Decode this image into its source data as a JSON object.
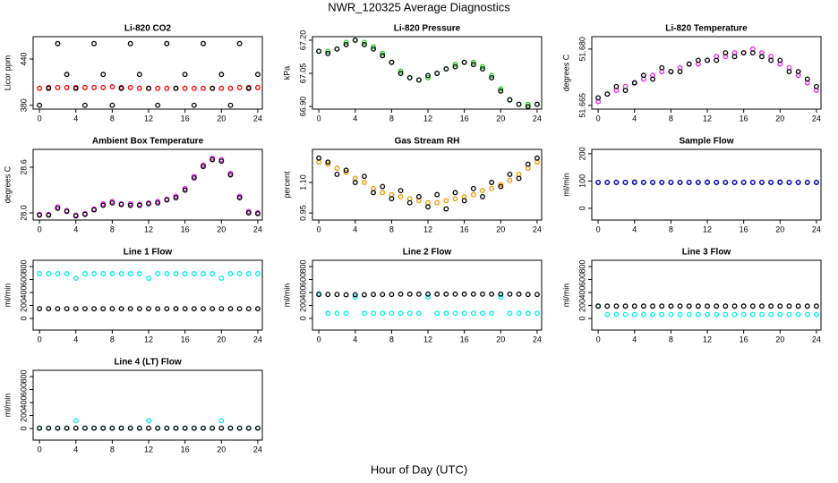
{
  "title": "NWR_120325  Average Diagnostics",
  "xlabel": "Hour of Day (UTC)",
  "chart_data": [
    {
      "type": "scatter",
      "title": "Li-820 CO2",
      "ylabel": "Licor ppm",
      "xlim": [
        -0.7,
        24.5
      ],
      "xticks": [
        0,
        4,
        8,
        12,
        16,
        20,
        24
      ],
      "ylim": [
        375,
        469
      ],
      "yticks": [
        380,
        440
      ],
      "x": [
        0,
        1,
        2,
        3,
        4,
        5,
        6,
        7,
        8,
        9,
        10,
        11,
        12,
        13,
        14,
        15,
        16,
        17,
        18,
        19,
        20,
        21,
        22,
        23,
        24
      ],
      "series": [
        {
          "color": "#ff0000",
          "values": [
            402,
            403,
            403,
            403,
            403,
            403,
            403,
            403,
            404,
            403,
            403,
            402,
            402,
            402,
            402,
            402,
            402,
            402,
            402,
            402,
            402,
            402,
            403,
            403,
            403
          ]
        },
        {
          "color": "#000000",
          "values": [
            380,
            402,
            460,
            420,
            402,
            380,
            460,
            420,
            380,
            402,
            460,
            420,
            402,
            380,
            460,
            402,
            420,
            380,
            460,
            402,
            420,
            380,
            460,
            402,
            420
          ]
        }
      ]
    },
    {
      "type": "scatter",
      "title": "Li-820 Pressure",
      "ylabel": "kPa",
      "xlim": [
        -0.7,
        24.5
      ],
      "xticks": [
        0,
        4,
        8,
        12,
        16,
        20,
        24
      ],
      "ylim": [
        66.888,
        67.216
      ],
      "yticks": [
        {
          "value": 66.9,
          "label": "66.90"
        },
        {
          "value": 67.05,
          "label": "67.05"
        },
        {
          "value": 67.2,
          "label": "67.20"
        }
      ],
      "x": [
        0,
        1,
        2,
        3,
        4,
        5,
        6,
        7,
        8,
        9,
        10,
        11,
        12,
        13,
        14,
        15,
        16,
        17,
        18,
        19,
        20,
        21,
        22,
        23,
        24
      ],
      "series": [
        {
          "color": "#22cc22",
          "values": [
            67.15,
            67.15,
            67.16,
            67.19,
            67.2,
            67.19,
            67.17,
            67.14,
            67.1,
            67.06,
            67.03,
            67.02,
            67.03,
            67.05,
            67.07,
            67.09,
            67.1,
            67.1,
            67.08,
            67.04,
            66.98,
            66.93,
            66.91,
            66.91,
            66.91
          ]
        },
        {
          "color": "#000000",
          "values": [
            67.15,
            67.14,
            67.16,
            67.18,
            67.2,
            67.18,
            67.16,
            67.13,
            67.1,
            67.05,
            67.03,
            67.02,
            67.04,
            67.05,
            67.07,
            67.08,
            67.1,
            67.09,
            67.07,
            67.03,
            66.97,
            66.93,
            66.91,
            66.9,
            66.91
          ]
        }
      ]
    },
    {
      "type": "scatter",
      "title": "Li-820 Temperature",
      "ylabel": "degrees C",
      "xlim": [
        -0.7,
        24.5
      ],
      "xticks": [
        0,
        4,
        8,
        12,
        16,
        20,
        24
      ],
      "ylim": [
        51.664,
        51.6833
      ],
      "yticks": [
        51.665,
        {
          "value": 51.68,
          "label": "51.680"
        }
      ],
      "x": [
        0,
        1,
        2,
        3,
        4,
        5,
        6,
        7,
        8,
        9,
        10,
        11,
        12,
        13,
        14,
        15,
        16,
        17,
        18,
        19,
        20,
        21,
        22,
        23,
        24
      ],
      "series": [
        {
          "color": "#ee22ee",
          "values": [
            51.666,
            51.668,
            51.669,
            51.67,
            51.671,
            51.672,
            51.673,
            51.674,
            51.674,
            51.675,
            51.676,
            51.676,
            51.677,
            51.678,
            51.678,
            51.679,
            51.679,
            51.68,
            51.679,
            51.678,
            51.676,
            51.675,
            51.673,
            51.671,
            51.669
          ]
        },
        {
          "color": "#000000",
          "values": [
            51.667,
            51.668,
            51.67,
            51.669,
            51.671,
            51.673,
            51.672,
            51.675,
            51.674,
            51.674,
            51.676,
            51.677,
            51.677,
            51.677,
            51.679,
            51.678,
            51.679,
            51.679,
            51.678,
            51.677,
            51.677,
            51.674,
            51.674,
            51.672,
            51.67
          ]
        }
      ]
    },
    {
      "type": "scatter",
      "title": "Ambient Box Temperature",
      "ylabel": "degrees C",
      "xlim": [
        -0.7,
        24.5
      ],
      "xticks": [
        0,
        4,
        8,
        12,
        16,
        20,
        24
      ],
      "ylim": [
        27.906,
        28.835
      ],
      "yticks": [
        {
          "value": 28.0,
          "label": "28.0"
        },
        28.6
      ],
      "x": [
        0,
        1,
        2,
        3,
        4,
        5,
        6,
        7,
        8,
        9,
        10,
        11,
        12,
        13,
        14,
        15,
        16,
        17,
        18,
        19,
        20,
        21,
        22,
        23,
        24
      ],
      "series": [
        {
          "color": "#ee22ee",
          "values": [
            27.98,
            27.98,
            28.08,
            28.03,
            27.97,
            27.99,
            28.05,
            28.12,
            28.15,
            28.12,
            28.12,
            28.11,
            28.13,
            28.15,
            28.18,
            28.22,
            28.32,
            28.48,
            28.63,
            28.72,
            28.7,
            28.52,
            28.22,
            28.02,
            28.0
          ]
        },
        {
          "color": "#000000",
          "values": [
            27.97,
            27.97,
            28.06,
            28.02,
            27.96,
            27.98,
            28.04,
            28.1,
            28.13,
            28.11,
            28.1,
            28.1,
            28.12,
            28.13,
            28.17,
            28.2,
            28.3,
            28.46,
            28.61,
            28.7,
            28.68,
            28.5,
            28.2,
            28.0,
            27.99
          ]
        }
      ]
    },
    {
      "type": "scatter",
      "title": "Gas Stream RH",
      "ylabel": "percent",
      "xlim": [
        -0.7,
        24.5
      ],
      "xticks": [
        0,
        4,
        8,
        12,
        16,
        20,
        24
      ],
      "ylim": [
        0.915,
        1.263
      ],
      "yticks": [
        0.95,
        {
          "value": 1.1,
          "label": "1.10"
        }
      ],
      "x": [
        0,
        1,
        2,
        3,
        4,
        5,
        6,
        7,
        8,
        9,
        10,
        11,
        12,
        13,
        14,
        15,
        16,
        17,
        18,
        19,
        20,
        21,
        22,
        23,
        24
      ],
      "series": [
        {
          "color": "#ee9900",
          "values": [
            1.2,
            1.19,
            1.17,
            1.15,
            1.12,
            1.1,
            1.07,
            1.05,
            1.04,
            1.03,
            1.02,
            1.01,
            1.0,
            1.0,
            1.01,
            1.02,
            1.03,
            1.04,
            1.06,
            1.07,
            1.09,
            1.11,
            1.14,
            1.17,
            1.2
          ]
        },
        {
          "color": "#000000",
          "values": [
            1.22,
            1.2,
            1.14,
            1.16,
            1.1,
            1.13,
            1.05,
            1.08,
            1.02,
            1.06,
            1.0,
            1.03,
            0.98,
            1.04,
            0.97,
            1.05,
            1.01,
            1.07,
            1.03,
            1.1,
            1.08,
            1.14,
            1.12,
            1.19,
            1.22
          ]
        }
      ]
    },
    {
      "type": "scatter",
      "title": "Sample Flow",
      "ylabel": "ml/min",
      "xlim": [
        -0.7,
        24.5
      ],
      "xticks": [
        0,
        4,
        8,
        12,
        16,
        20,
        24
      ],
      "ylim": [
        -43,
        216
      ],
      "yticks": [
        0,
        100,
        200
      ],
      "x": [
        0,
        1,
        2,
        3,
        4,
        5,
        6,
        7,
        8,
        9,
        10,
        11,
        12,
        13,
        14,
        15,
        16,
        17,
        18,
        19,
        20,
        21,
        22,
        23,
        24
      ],
      "series": [
        {
          "color": "#000000",
          "values": [
            95,
            95,
            95,
            95,
            96,
            95,
            95,
            95,
            95,
            95,
            95,
            95,
            96,
            95,
            95,
            95,
            95,
            95,
            95,
            95,
            96,
            95,
            95,
            95,
            95
          ]
        },
        {
          "color": "#0000cc",
          "values": [
            95,
            95,
            95,
            95,
            95,
            95,
            95,
            95,
            95,
            95,
            95,
            95,
            95,
            95,
            95,
            95,
            95,
            95,
            95,
            95,
            95,
            95,
            95,
            95,
            95
          ]
        }
      ]
    },
    {
      "type": "scatter",
      "title": "Line 1 Flow",
      "ylabel": "ml/min",
      "xlim": [
        -0.7,
        24.5
      ],
      "xticks": [
        0,
        4,
        8,
        12,
        16,
        20,
        24
      ],
      "ylim": [
        -179,
        897
      ],
      "yticks": [
        0,
        200,
        400,
        600,
        800
      ],
      "x": [
        0,
        1,
        2,
        3,
        4,
        5,
        6,
        7,
        8,
        9,
        10,
        11,
        12,
        13,
        14,
        15,
        16,
        17,
        18,
        19,
        20,
        21,
        22,
        23,
        24
      ],
      "series": [
        {
          "color": "#00eeee",
          "values": [
            690,
            690,
            690,
            690,
            620,
            690,
            690,
            690,
            690,
            690,
            690,
            690,
            620,
            690,
            690,
            690,
            690,
            690,
            690,
            690,
            620,
            690,
            690,
            690,
            690
          ]
        },
        {
          "color": "#000000",
          "values": [
            150,
            150,
            150,
            150,
            150,
            150,
            150,
            150,
            150,
            150,
            150,
            150,
            150,
            150,
            150,
            150,
            150,
            150,
            150,
            150,
            150,
            150,
            150,
            150,
            150
          ]
        }
      ]
    },
    {
      "type": "scatter",
      "title": "Line 2 Flow",
      "ylabel": "ml/min",
      "xlim": [
        -0.7,
        24.5
      ],
      "xticks": [
        0,
        4,
        8,
        12,
        16,
        20,
        24
      ],
      "ylim": [
        -179,
        897
      ],
      "yticks": [
        0,
        200,
        400,
        600,
        800
      ],
      "x": [
        0,
        1,
        2,
        3,
        4,
        5,
        6,
        7,
        8,
        9,
        10,
        11,
        12,
        13,
        14,
        15,
        16,
        17,
        18,
        19,
        20,
        21,
        22,
        23,
        24
      ],
      "series": [
        {
          "color": "#00eeee",
          "values": [
            380,
            80,
            80,
            80,
            330,
            80,
            80,
            80,
            80,
            80,
            80,
            80,
            330,
            80,
            80,
            80,
            80,
            80,
            80,
            80,
            330,
            80,
            80,
            80,
            80
          ]
        },
        {
          "color": "#000000",
          "values": [
            370,
            370,
            370,
            365,
            365,
            365,
            370,
            370,
            370,
            375,
            375,
            375,
            375,
            375,
            375,
            375,
            375,
            375,
            375,
            375,
            375,
            375,
            375,
            370,
            370
          ]
        }
      ]
    },
    {
      "type": "scatter",
      "title": "Line 3 Flow",
      "ylabel": "ml/min",
      "xlim": [
        -0.7,
        24.5
      ],
      "xticks": [
        0,
        4,
        8,
        12,
        16,
        20,
        24
      ],
      "ylim": [
        -179,
        897
      ],
      "yticks": [
        0,
        200,
        400,
        600,
        800
      ],
      "x": [
        0,
        1,
        2,
        3,
        4,
        5,
        6,
        7,
        8,
        9,
        10,
        11,
        12,
        13,
        14,
        15,
        16,
        17,
        18,
        19,
        20,
        21,
        22,
        23,
        24
      ],
      "series": [
        {
          "color": "#00eeee",
          "values": [
            190,
            60,
            60,
            60,
            60,
            60,
            60,
            60,
            60,
            60,
            60,
            60,
            60,
            60,
            60,
            60,
            60,
            60,
            60,
            60,
            60,
            60,
            60,
            60,
            60
          ]
        },
        {
          "color": "#000000",
          "values": [
            190,
            190,
            190,
            190,
            190,
            190,
            190,
            190,
            190,
            190,
            190,
            190,
            190,
            190,
            190,
            190,
            190,
            190,
            190,
            190,
            190,
            190,
            190,
            190,
            190
          ]
        }
      ]
    },
    {
      "type": "scatter",
      "title": "Line 4 (LT) Flow",
      "ylabel": "ml/min",
      "xlim": [
        -0.7,
        24.5
      ],
      "xticks": [
        0,
        4,
        8,
        12,
        16,
        20,
        24
      ],
      "ylim": [
        -179,
        897
      ],
      "yticks": [
        0,
        200,
        400,
        600,
        800
      ],
      "x": [
        0,
        1,
        2,
        3,
        4,
        5,
        6,
        7,
        8,
        9,
        10,
        11,
        12,
        13,
        14,
        15,
        16,
        17,
        18,
        19,
        20,
        21,
        22,
        23,
        24
      ],
      "series": [
        {
          "color": "#00eeee",
          "values": [
            5,
            5,
            5,
            5,
            120,
            5,
            5,
            5,
            5,
            5,
            5,
            5,
            120,
            5,
            5,
            5,
            5,
            5,
            5,
            5,
            120,
            5,
            5,
            5,
            5
          ]
        },
        {
          "color": "#000000",
          "values": [
            5,
            5,
            5,
            5,
            5,
            5,
            5,
            5,
            5,
            5,
            5,
            5,
            5,
            5,
            5,
            5,
            5,
            5,
            5,
            5,
            5,
            5,
            5,
            5,
            5
          ]
        }
      ]
    }
  ]
}
